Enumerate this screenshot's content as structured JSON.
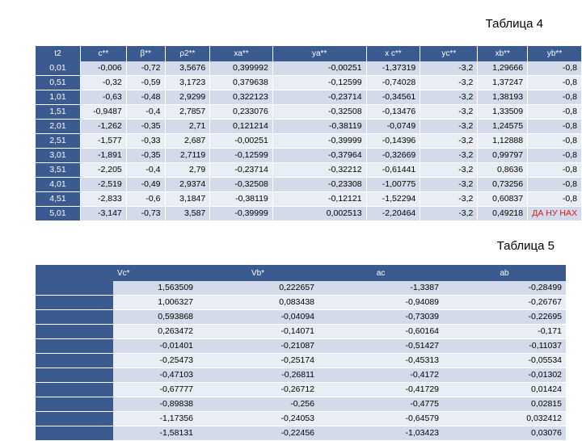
{
  "table4": {
    "caption": "Таблица 4",
    "headers": [
      "t2",
      "c**",
      "β**",
      "ρ2**",
      "xa**",
      "ya**",
      "x c**",
      "yc**",
      "xb**",
      "yb**"
    ],
    "rows": [
      [
        "0,01",
        "-0,006",
        "-0,72",
        "3,5676",
        "0,399992",
        "-0,00251",
        "-1,37319",
        "-3,2",
        "1,29666",
        "-0,8"
      ],
      [
        "0,51",
        "-0,32",
        "-0,59",
        "3,1723",
        "0,379638",
        "-0,12599",
        "-0,74028",
        "-3,2",
        "1,37247",
        "-0,8"
      ],
      [
        "1,01",
        "-0,63",
        "-0,48",
        "2,9299",
        "0,322123",
        "-0,23714",
        "-0,34561",
        "-3,2",
        "1,38193",
        "-0,8"
      ],
      [
        "1,51",
        "-0,9487",
        "-0,4",
        "2,7857",
        "0,233076",
        "-0,32508",
        "-0,13476",
        "-3,2",
        "1,33509",
        "-0,8"
      ],
      [
        "2,01",
        "-1,262",
        "-0,35",
        "2,71",
        "0,121214",
        "-0,38119",
        "-0,0749",
        "-3,2",
        "1,24575",
        "-0,8"
      ],
      [
        "2,51",
        "-1,577",
        "-0,33",
        "2,687",
        "-0,00251",
        "-0,39999",
        "-0,14396",
        "-3,2",
        "1,12888",
        "-0,8"
      ],
      [
        "3,01",
        "-1,891",
        "-0,35",
        "2,7119",
        "-0,12599",
        "-0,37964",
        "-0,32669",
        "-3,2",
        "0,99797",
        "-0,8"
      ],
      [
        "3,51",
        "-2,205",
        "-0,4",
        "2,79",
        "-0,23714",
        "-0,32212",
        "-0,61441",
        "-3,2",
        "0,8636",
        "-0,8"
      ],
      [
        "4,01",
        "-2,519",
        "-0,49",
        "2,9374",
        "-0,32508",
        "-0,23308",
        "-1,00775",
        "-3,2",
        "0,73256",
        "-0,8"
      ],
      [
        "4,51",
        "-2,833",
        "-0,6",
        "3,1847",
        "-0,38119",
        "-0,12121",
        "-1,52294",
        "-3,2",
        "0,60837",
        "-0,8"
      ],
      [
        "5,01",
        "-3,147",
        "-0,73",
        "3,587",
        "-0,39999",
        "0,002513",
        "-2,20464",
        "-3,2",
        "0,49218",
        "ДА НУ НАХ"
      ]
    ],
    "highlight_color": "#d01c1c"
  },
  "table5": {
    "caption": "Таблица 5",
    "headers": [
      "Vc*",
      "Vb*",
      "ac",
      "ab"
    ],
    "rows": [
      [
        "1,563509",
        "0,222657",
        "-1,3387",
        "-0,28499"
      ],
      [
        "1,006327",
        "0,083438",
        "-0,94089",
        "-0,26767"
      ],
      [
        "0,593868",
        "-0,04094",
        "-0,73039",
        "-0,22695"
      ],
      [
        "0,263472",
        "-0,14071",
        "-0,60164",
        "-0,171"
      ],
      [
        "-0,01401",
        "-0,21087",
        "-0,51427",
        "-0,11037"
      ],
      [
        "-0,25473",
        "-0,25174",
        "-0,45313",
        "-0,05534"
      ],
      [
        "-0,47103",
        "-0,26811",
        "-0,4172",
        "-0,01302"
      ],
      [
        "-0,67777",
        "-0,26712",
        "-0,41729",
        "0,01424"
      ],
      [
        "-0,89838",
        "-0,256",
        "-0,4775",
        "0,02815"
      ],
      [
        "-1,17356",
        "-0,24053",
        "-0,64579",
        "0,032412"
      ],
      [
        "-1,58131",
        "-0,22456",
        "-1,03423",
        "0,03076"
      ]
    ]
  },
  "colors": {
    "header": "#3b5a8f",
    "row_dark": "#d3dbea",
    "row_light": "#e9edf5"
  }
}
